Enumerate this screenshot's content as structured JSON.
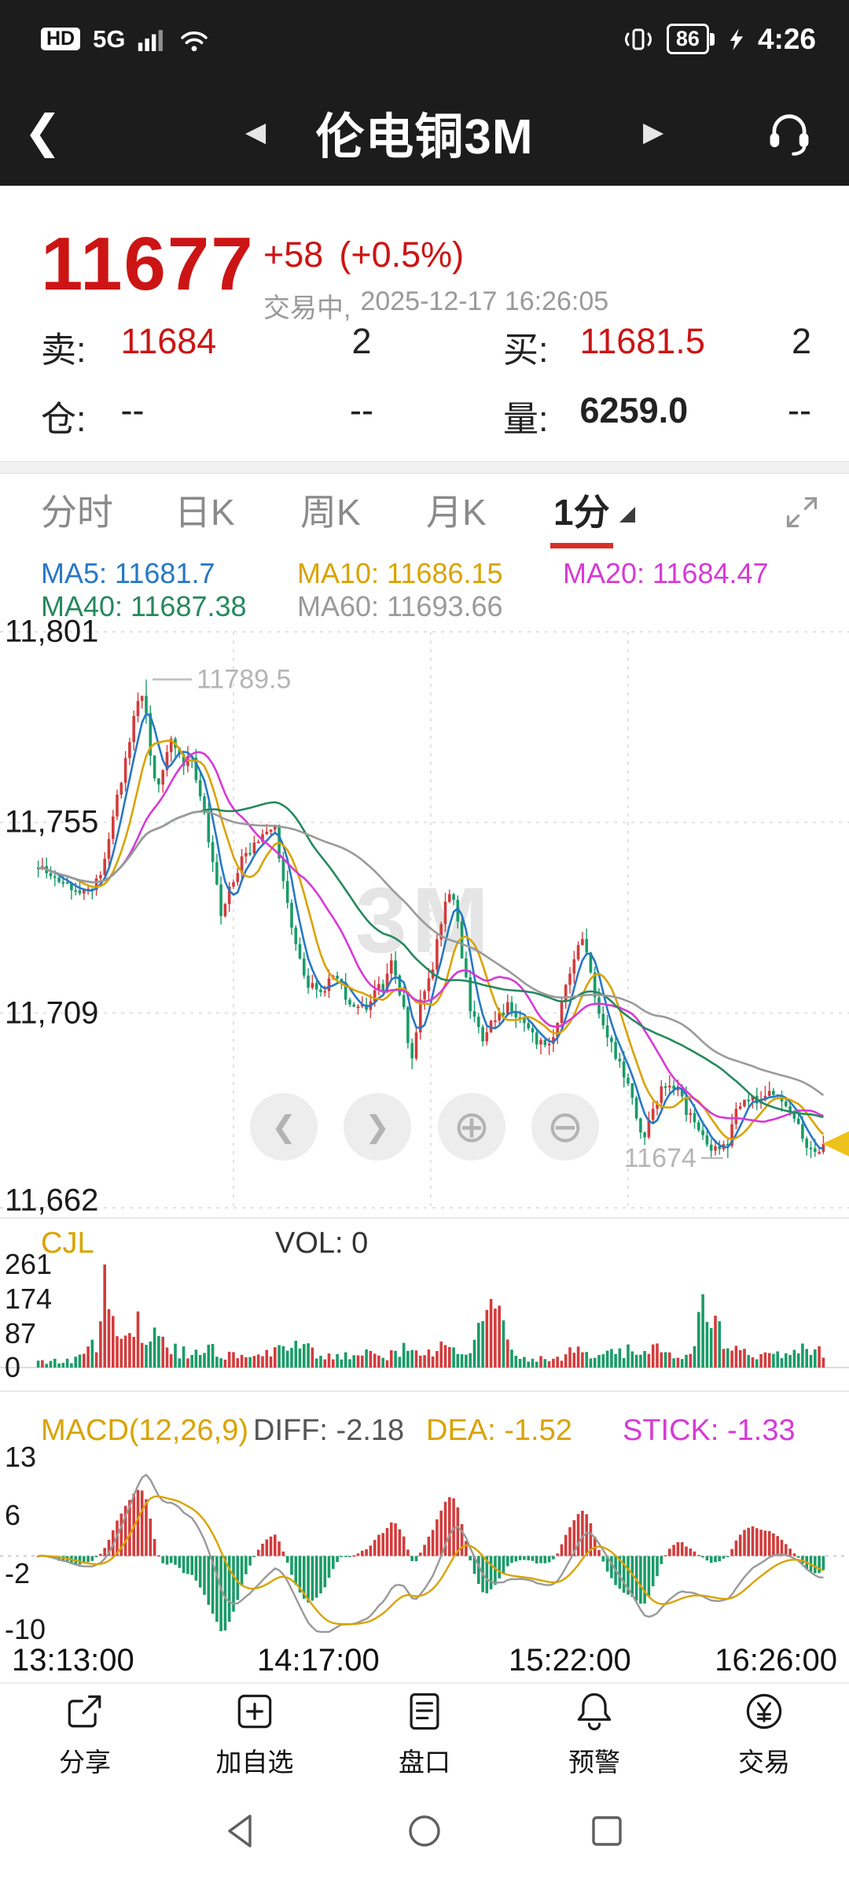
{
  "colors": {
    "up": "#d23c3c",
    "down": "#1a9b68",
    "accent": "#cc1414",
    "marker": "#edc21a",
    "ma5": "#2778c4",
    "ma10": "#d9a300",
    "ma20": "#d63ad6",
    "ma40": "#27885f",
    "ma60": "#9a9a9a",
    "diff_line": "#999999",
    "dea_line": "#d9a300",
    "tab_underline": "#d93025"
  },
  "status_bar": {
    "hd": "HD",
    "network": "5G",
    "battery": "86",
    "time": "4:26"
  },
  "title_bar": {
    "title": "伦电铜3M"
  },
  "icons": {
    "back": "❮",
    "prev": "◀",
    "next": "▶",
    "nav_left": "❮",
    "nav_right": "❯",
    "zoom_in": "⊕",
    "zoom_out": "⊖"
  },
  "quote": {
    "last": "11677",
    "change": "+58",
    "change_pct": "(+0.5%)",
    "status": "交易中,",
    "datetime": "2025-12-17 16:26:05",
    "rows": [
      {
        "l1": "卖:",
        "v1": "11684",
        "m": "2",
        "l2": "买:",
        "v2": "11681.5",
        "r": "2"
      },
      {
        "l1": "仓:",
        "v1": "--",
        "m": "--",
        "l2": "量:",
        "v2": "6259.0",
        "r": "--"
      }
    ]
  },
  "tabs": {
    "items": [
      "分时",
      "日K",
      "周K",
      "月K",
      "1分"
    ],
    "selected_index": 4
  },
  "indicators": {
    "ma5": "MA5: 11681.7",
    "ma10": "MA10: 11686.15",
    "ma20": "MA20: 11684.47",
    "ma40": "MA40: 11687.38",
    "ma60": "MA60: 11693.66",
    "cjl": "CJL",
    "vol": "VOL: 0",
    "macd_title": "MACD(12,26,9)",
    "diff": "DIFF: -2.18",
    "dea": "DEA: -1.52",
    "stick": "STICK: -1.33"
  },
  "chart_data": {
    "type": "candlestick",
    "timeframe": "1分",
    "watermark": "3M",
    "x_ticks": [
      "13:13:00",
      "14:17:00",
      "15:22:00",
      "16:26:00"
    ],
    "price_axis": {
      "max": 11801,
      "min": 11662,
      "ticks": [
        11801,
        11755,
        11709,
        11662
      ],
      "tick_labels": [
        "11,801",
        "11,755",
        "11,709",
        "11,662"
      ]
    },
    "session": {
      "high": 11789.5,
      "high_label": "11789.5",
      "low": 11674,
      "low_label": "11674",
      "last": 11677,
      "high_pos": 0.135,
      "low_pos": 0.877
    },
    "ma_periods": [
      5,
      10,
      20,
      40,
      60
    ],
    "candles": {
      "count": 190,
      "price_anchors": [
        [
          0.0,
          11744
        ],
        [
          0.03,
          11741
        ],
        [
          0.05,
          11737
        ],
        [
          0.07,
          11740
        ],
        [
          0.085,
          11746
        ],
        [
          0.1,
          11760
        ],
        [
          0.115,
          11774
        ],
        [
          0.128,
          11785
        ],
        [
          0.135,
          11787
        ],
        [
          0.142,
          11772
        ],
        [
          0.15,
          11762
        ],
        [
          0.16,
          11770
        ],
        [
          0.17,
          11776
        ],
        [
          0.185,
          11768
        ],
        [
          0.195,
          11772
        ],
        [
          0.205,
          11762
        ],
        [
          0.22,
          11748
        ],
        [
          0.232,
          11733
        ],
        [
          0.245,
          11740
        ],
        [
          0.26,
          11747
        ],
        [
          0.275,
          11750
        ],
        [
          0.29,
          11752
        ],
        [
          0.3,
          11755
        ],
        [
          0.312,
          11742
        ],
        [
          0.325,
          11726
        ],
        [
          0.34,
          11717
        ],
        [
          0.36,
          11713
        ],
        [
          0.377,
          11719
        ],
        [
          0.39,
          11714
        ],
        [
          0.41,
          11709
        ],
        [
          0.425,
          11713
        ],
        [
          0.44,
          11716
        ],
        [
          0.452,
          11722
        ],
        [
          0.465,
          11710
        ],
        [
          0.475,
          11698
        ],
        [
          0.487,
          11712
        ],
        [
          0.5,
          11718
        ],
        [
          0.513,
          11730
        ],
        [
          0.525,
          11740
        ],
        [
          0.535,
          11729
        ],
        [
          0.55,
          11710
        ],
        [
          0.565,
          11703
        ],
        [
          0.58,
          11707
        ],
        [
          0.6,
          11711
        ],
        [
          0.617,
          11706
        ],
        [
          0.633,
          11703
        ],
        [
          0.65,
          11701
        ],
        [
          0.665,
          11710
        ],
        [
          0.682,
          11722
        ],
        [
          0.695,
          11727
        ],
        [
          0.71,
          11713
        ],
        [
          0.725,
          11703
        ],
        [
          0.74,
          11697
        ],
        [
          0.755,
          11690
        ],
        [
          0.77,
          11679
        ],
        [
          0.785,
          11687
        ],
        [
          0.8,
          11693
        ],
        [
          0.815,
          11690
        ],
        [
          0.83,
          11684
        ],
        [
          0.845,
          11679
        ],
        [
          0.86,
          11676
        ],
        [
          0.877,
          11677
        ],
        [
          0.89,
          11686
        ],
        [
          0.905,
          11689
        ],
        [
          0.92,
          11687
        ],
        [
          0.935,
          11690
        ],
        [
          0.95,
          11687
        ],
        [
          0.963,
          11684
        ],
        [
          0.978,
          11677
        ],
        [
          0.99,
          11675
        ],
        [
          1.0,
          11677
        ]
      ]
    },
    "volume": {
      "max": 261,
      "ticks": [
        "261",
        "174",
        "87",
        "0"
      ],
      "spike_pos": 0.085,
      "anchors": [
        [
          0,
          14
        ],
        [
          0.04,
          18
        ],
        [
          0.06,
          30
        ],
        [
          0.075,
          70
        ],
        [
          0.085,
          255
        ],
        [
          0.095,
          130
        ],
        [
          0.105,
          85
        ],
        [
          0.12,
          95
        ],
        [
          0.13,
          105
        ],
        [
          0.14,
          90
        ],
        [
          0.155,
          65
        ],
        [
          0.17,
          45
        ],
        [
          0.19,
          35
        ],
        [
          0.21,
          55
        ],
        [
          0.23,
          40
        ],
        [
          0.25,
          28
        ],
        [
          0.27,
          22
        ],
        [
          0.3,
          38
        ],
        [
          0.325,
          75
        ],
        [
          0.35,
          35
        ],
        [
          0.38,
          26
        ],
        [
          0.41,
          40
        ],
        [
          0.44,
          22
        ],
        [
          0.465,
          48
        ],
        [
          0.49,
          30
        ],
        [
          0.515,
          55
        ],
        [
          0.53,
          45
        ],
        [
          0.55,
          60
        ],
        [
          0.585,
          150
        ],
        [
          0.6,
          35
        ],
        [
          0.63,
          22
        ],
        [
          0.66,
          28
        ],
        [
          0.685,
          40
        ],
        [
          0.71,
          32
        ],
        [
          0.74,
          38
        ],
        [
          0.77,
          58
        ],
        [
          0.8,
          32
        ],
        [
          0.83,
          26
        ],
        [
          0.855,
          185
        ],
        [
          0.87,
          70
        ],
        [
          0.885,
          48
        ],
        [
          0.9,
          38
        ],
        [
          0.93,
          26
        ],
        [
          0.955,
          32
        ],
        [
          0.975,
          48
        ],
        [
          1,
          38
        ]
      ]
    },
    "macd": {
      "fast": 12,
      "slow": 26,
      "signal": 9,
      "axis_max": 13,
      "axis_min": -10,
      "ticks": [
        "13",
        "6",
        "-2",
        "-10"
      ]
    }
  },
  "toolbar": {
    "items": [
      {
        "label": "分享",
        "icon": "share-icon"
      },
      {
        "label": "加自选",
        "icon": "add-watchlist-icon"
      },
      {
        "label": "盘口",
        "icon": "orderbook-icon"
      },
      {
        "label": "预警",
        "icon": "alert-icon"
      },
      {
        "label": "交易",
        "icon": "trade-icon"
      }
    ]
  }
}
